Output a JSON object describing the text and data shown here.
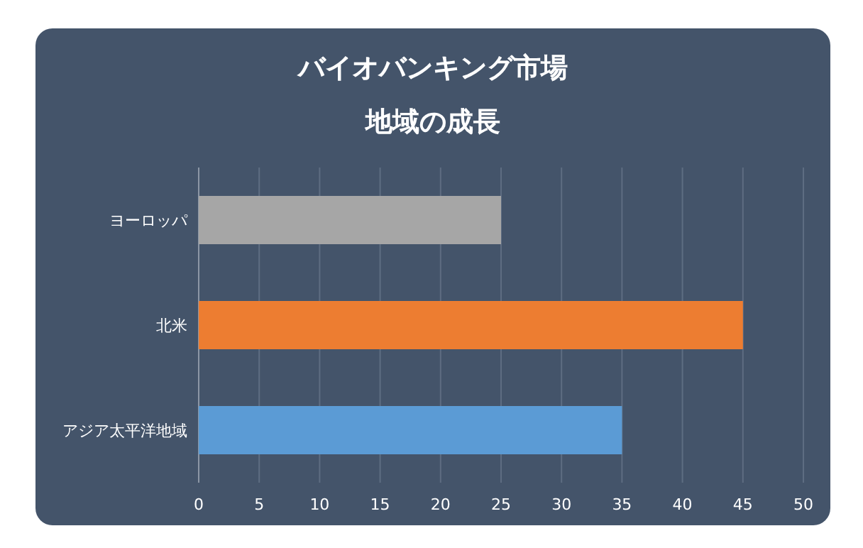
{
  "chart_data": {
    "type": "bar",
    "orientation": "horizontal",
    "title": "バイオバンキング市場",
    "subtitle": "地域の成長",
    "categories": [
      "ヨーロッパ",
      "北米",
      "アジア太平洋地域"
    ],
    "values": [
      25,
      45,
      35
    ],
    "colors": [
      "#a6a6a6",
      "#ed7d31",
      "#5b9bd5"
    ],
    "xlim": [
      0,
      50
    ],
    "xticks": [
      0,
      5,
      10,
      15,
      20,
      25,
      30,
      35,
      40,
      45,
      50
    ],
    "grid": "x"
  }
}
